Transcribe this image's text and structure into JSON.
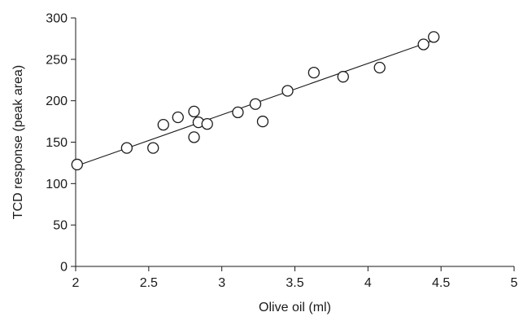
{
  "chart_data": {
    "type": "scatter",
    "xlabel": "Olive oil (ml)",
    "ylabel": "TCD response (peak area)",
    "xlim": [
      2,
      5
    ],
    "ylim": [
      0,
      300
    ],
    "x_ticks": [
      2,
      2.5,
      3,
      3.5,
      4,
      4.5,
      5
    ],
    "x_tick_labels": [
      "2",
      "2.5",
      "3",
      "3.5",
      "4",
      "4.5",
      "5"
    ],
    "y_ticks": [
      0,
      50,
      100,
      150,
      200,
      250,
      300
    ],
    "y_tick_labels": [
      "0",
      "50",
      "100",
      "150",
      "200",
      "250",
      "300"
    ],
    "grid": false,
    "legend": "none",
    "marker": "open-circle",
    "series": [
      {
        "x": [
          2.01,
          2.35,
          2.53,
          2.6,
          2.7,
          2.81,
          2.81,
          2.84,
          2.9,
          3.11,
          3.23,
          3.28,
          3.45,
          3.63,
          3.83,
          4.08,
          4.38,
          4.45
        ],
        "y": [
          123,
          143,
          143,
          171,
          180,
          187,
          156,
          174,
          172,
          186,
          196,
          175,
          212,
          234,
          229,
          240,
          268,
          277
        ]
      }
    ],
    "trendline": {
      "type": "linear",
      "x": [
        2.0,
        4.45
      ],
      "y": [
        121,
        273
      ]
    }
  }
}
